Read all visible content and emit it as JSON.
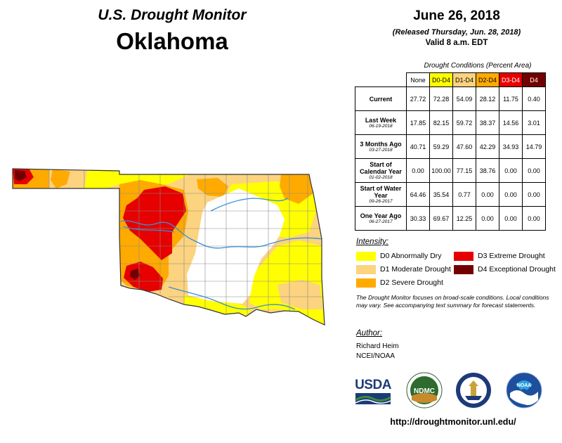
{
  "header": {
    "title": "U.S. Drought Monitor",
    "state": "Oklahoma",
    "date": "June 26, 2018",
    "released": "(Released Thursday, Jun. 28, 2018)",
    "valid": "Valid 8 a.m. EDT"
  },
  "table": {
    "caption": "Drought Conditions (Percent Area)",
    "columns": [
      {
        "label": "None",
        "color": "#ffffff",
        "text_color": "#000000"
      },
      {
        "label": "D0-D4",
        "color": "#ffff00",
        "text_color": "#000000"
      },
      {
        "label": "D1-D4",
        "color": "#fcd37f",
        "text_color": "#000000"
      },
      {
        "label": "D2-D4",
        "color": "#ffaa00",
        "text_color": "#000000"
      },
      {
        "label": "D3-D4",
        "color": "#e60000",
        "text_color": "#ffffff"
      },
      {
        "label": "D4",
        "color": "#730000",
        "text_color": "#ffffff"
      }
    ],
    "rows": [
      {
        "label": "Current",
        "sub": "",
        "values": [
          "27.72",
          "72.28",
          "54.09",
          "28.12",
          "11.75",
          "0.40"
        ]
      },
      {
        "label": "Last Week",
        "sub": "06-19-2018",
        "values": [
          "17.85",
          "82.15",
          "59.72",
          "38.37",
          "14.56",
          "3.01"
        ]
      },
      {
        "label": "3 Months Ago",
        "sub": "03-27-2018",
        "values": [
          "40.71",
          "59.29",
          "47.60",
          "42.29",
          "34.93",
          "14.79"
        ]
      },
      {
        "label": "Start of Calendar Year",
        "sub": "01-02-2018",
        "values": [
          "0.00",
          "100.00",
          "77.15",
          "38.76",
          "0.00",
          "0.00"
        ]
      },
      {
        "label": "Start of Water Year",
        "sub": "09-26-2017",
        "values": [
          "64.46",
          "35.54",
          "0.77",
          "0.00",
          "0.00",
          "0.00"
        ]
      },
      {
        "label": "One Year Ago",
        "sub": "06-27-2017",
        "values": [
          "30.33",
          "69.67",
          "12.25",
          "0.00",
          "0.00",
          "0.00"
        ]
      }
    ]
  },
  "legend": {
    "title": "Intensity:",
    "items": [
      {
        "label": "D0 Abnormally Dry",
        "color": "#ffff00"
      },
      {
        "label": "D1 Moderate Drought",
        "color": "#fcd37f"
      },
      {
        "label": "D2 Severe Drought",
        "color": "#ffaa00"
      },
      {
        "label": "D3 Extreme Drought",
        "color": "#e60000"
      },
      {
        "label": "D4 Exceptional Drought",
        "color": "#730000"
      }
    ]
  },
  "note": "The Drought Monitor focuses on broad-scale conditions. Local conditions may vary. See accompanying text summary for forecast statements.",
  "author": {
    "label": "Author:",
    "name": "Richard Heim",
    "org": "NCEI/NOAA"
  },
  "logos": {
    "usda": "USDA",
    "ndmc": "NDMC",
    "noaa": "NOAA"
  },
  "map": {
    "water_color": "#3a8fd6",
    "county_line_color": "#8a8a8a"
  },
  "url": "http://droughtmonitor.unl.edu/"
}
